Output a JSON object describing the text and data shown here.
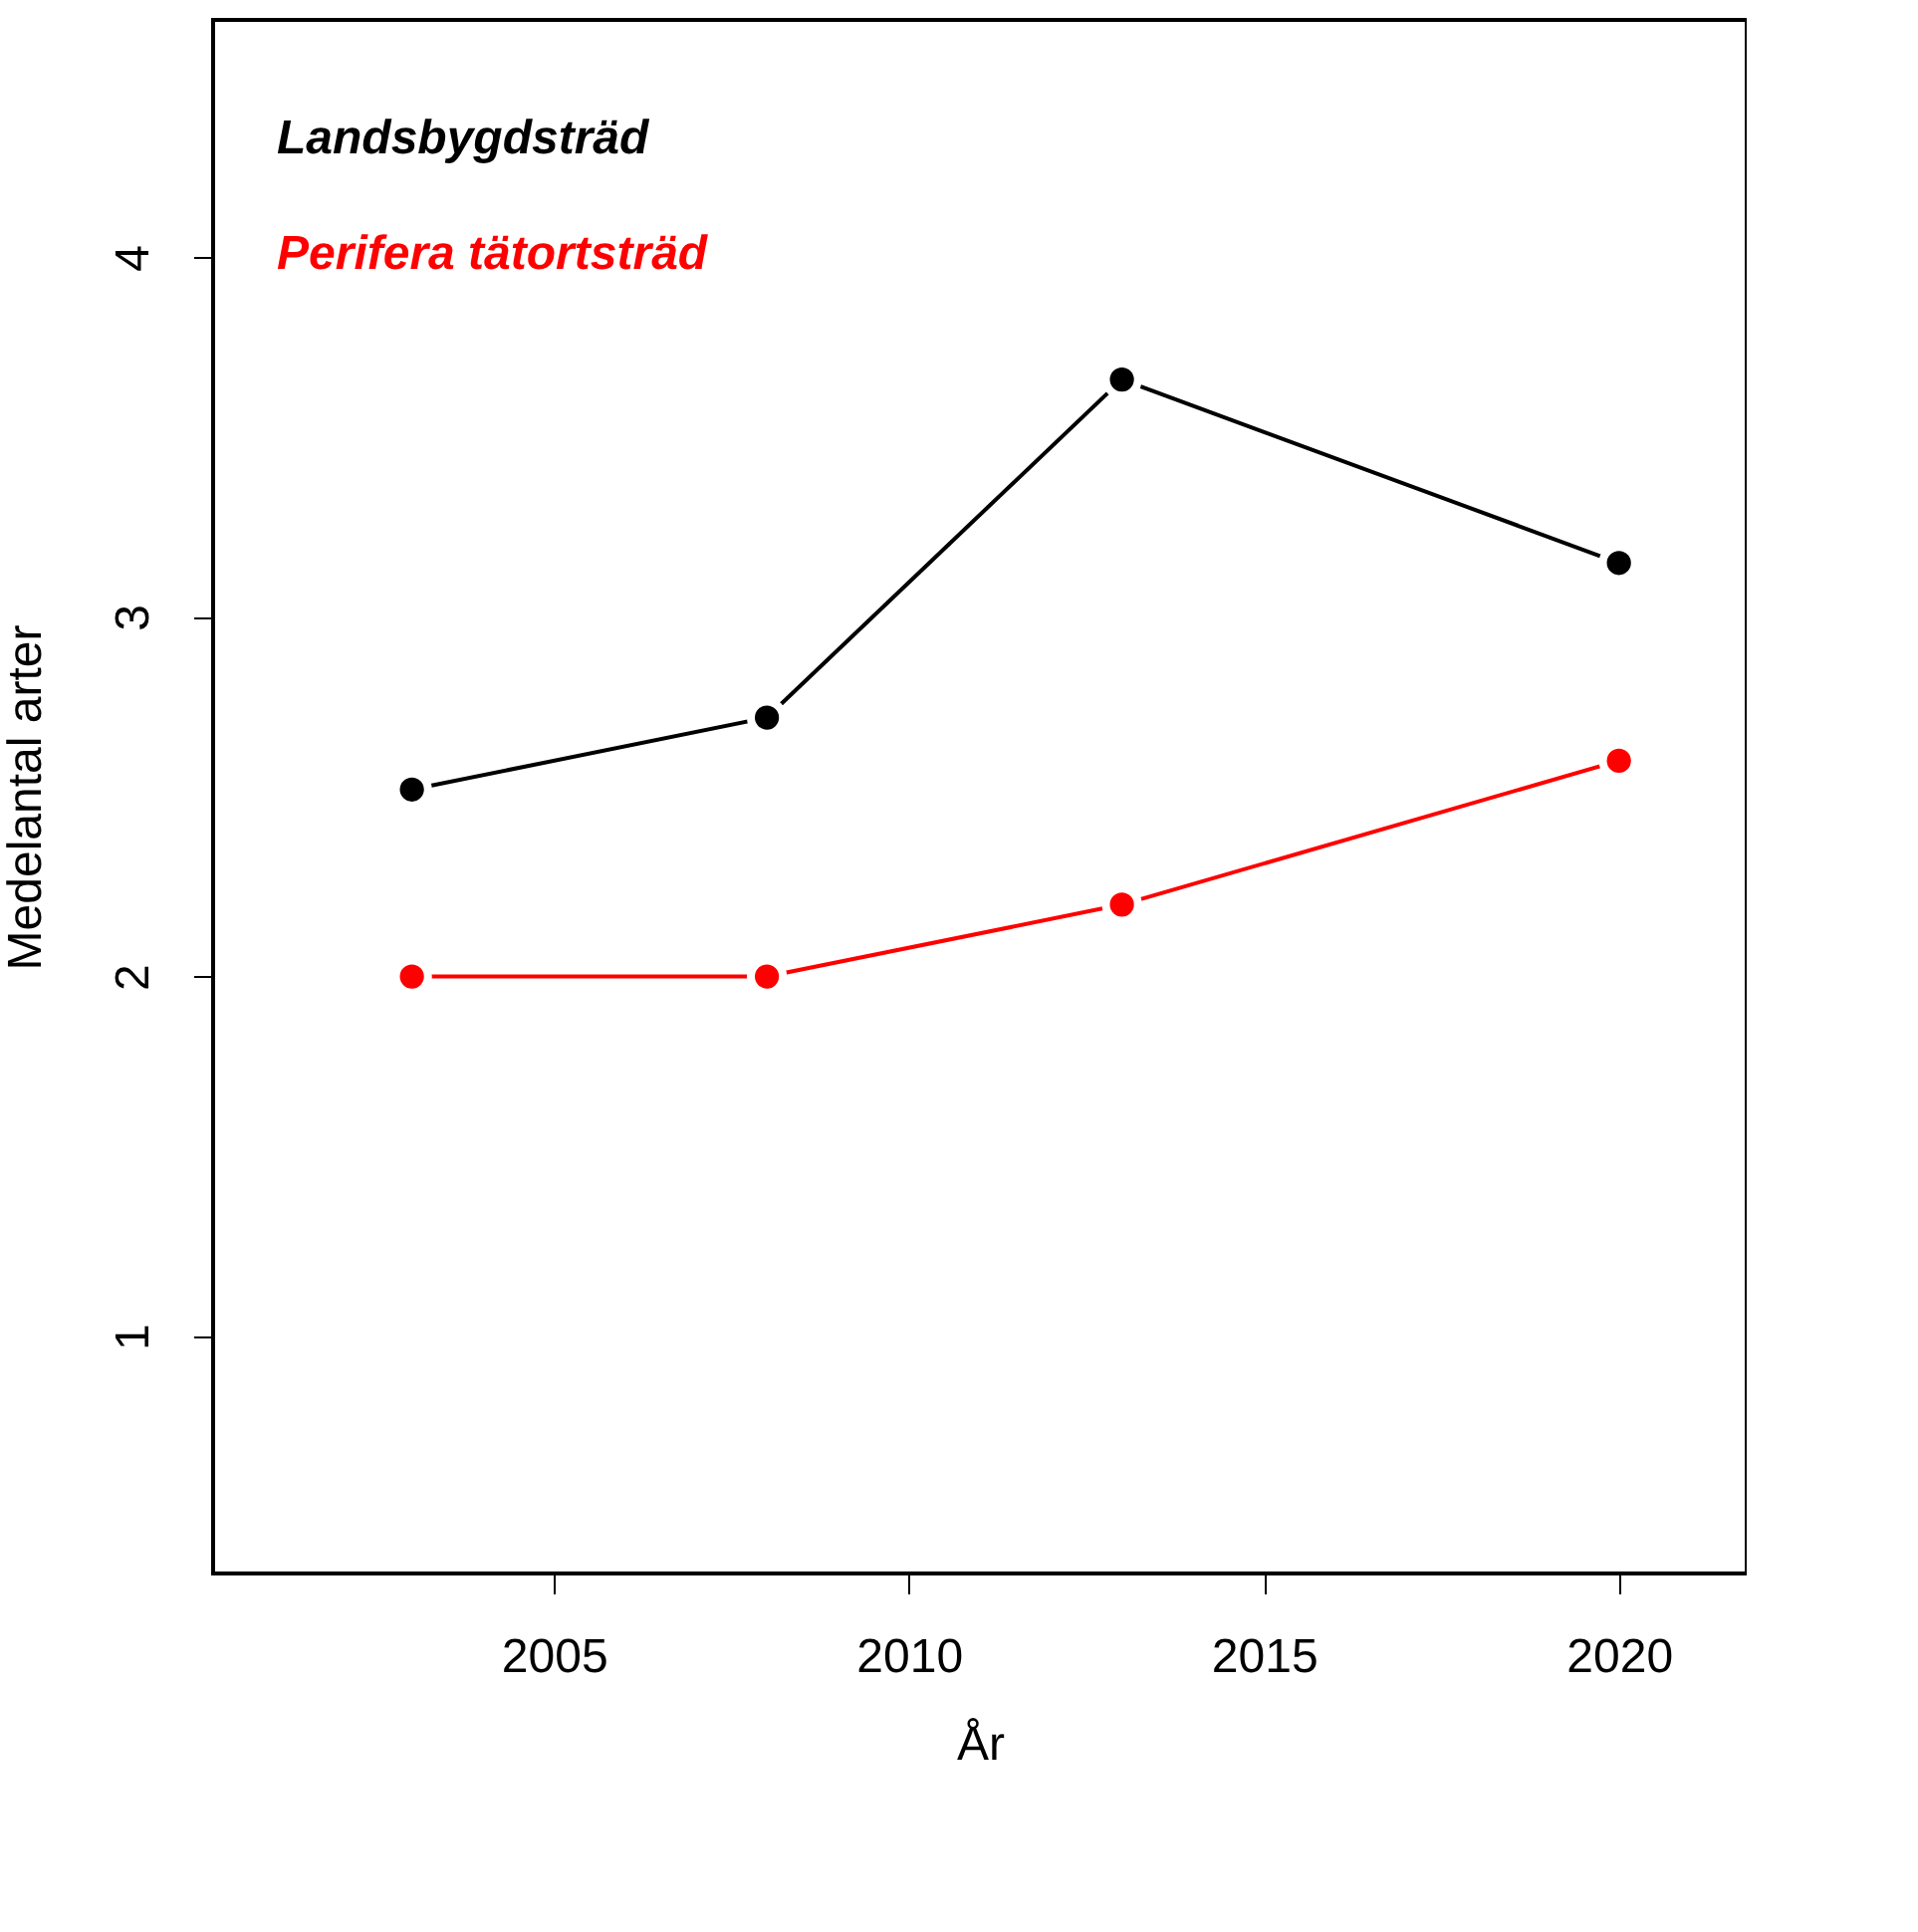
{
  "chart_data": {
    "type": "line",
    "xlabel": "År",
    "ylabel": "Medelantal arter",
    "x": [
      2003,
      2008,
      2013,
      2020
    ],
    "series": [
      {
        "name": "Landsbygdsträd",
        "color": "#000000",
        "values": [
          2.52,
          2.72,
          3.66,
          3.15
        ]
      },
      {
        "name": "Perifera tätortsträd",
        "color": "#ff0000",
        "values": [
          2.0,
          2.0,
          2.2,
          2.6
        ]
      }
    ],
    "xlim": [
      2000.2,
      2021.8
    ],
    "ylim": [
      0.34,
      4.66
    ],
    "xticks": [
      2005,
      2010,
      2015,
      2020
    ],
    "yticks": [
      1,
      2,
      3,
      4
    ],
    "grid": false,
    "legend": "top left",
    "marker": "circle",
    "line_style": "solid"
  }
}
